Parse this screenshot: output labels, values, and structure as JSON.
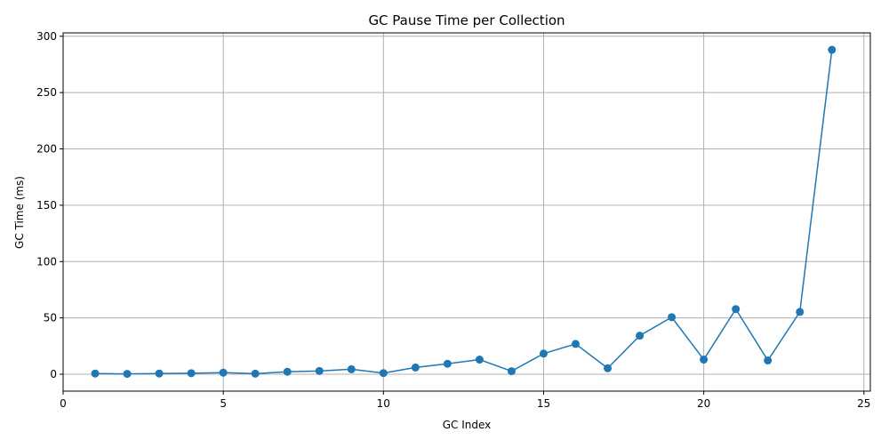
{
  "chart_data": {
    "type": "line",
    "title": "GC Pause Time per Collection",
    "xlabel": "GC Index",
    "ylabel": "GC Time (ms)",
    "xlim": [
      0,
      25.2
    ],
    "ylim": [
      -15,
      303
    ],
    "xticks": [
      0,
      5,
      10,
      15,
      20,
      25
    ],
    "yticks": [
      0,
      50,
      100,
      150,
      200,
      250,
      300
    ],
    "grid": true,
    "marker": "circle",
    "color": "#1f77b4",
    "series": [
      {
        "x": [
          1,
          2,
          3,
          4,
          5,
          6,
          7,
          8,
          9,
          10,
          11,
          12,
          13,
          14,
          15,
          16,
          17,
          18,
          19,
          20,
          21,
          22,
          23,
          24
        ],
        "values": [
          0.6,
          0.3,
          0.6,
          0.9,
          1.4,
          0.5,
          2.2,
          2.9,
          4.4,
          1.0,
          6.0,
          9.3,
          13.0,
          2.7,
          18.3,
          26.9,
          5.3,
          34.2,
          50.6,
          13.0,
          57.8,
          12.2,
          55.3,
          288.0
        ]
      }
    ]
  }
}
